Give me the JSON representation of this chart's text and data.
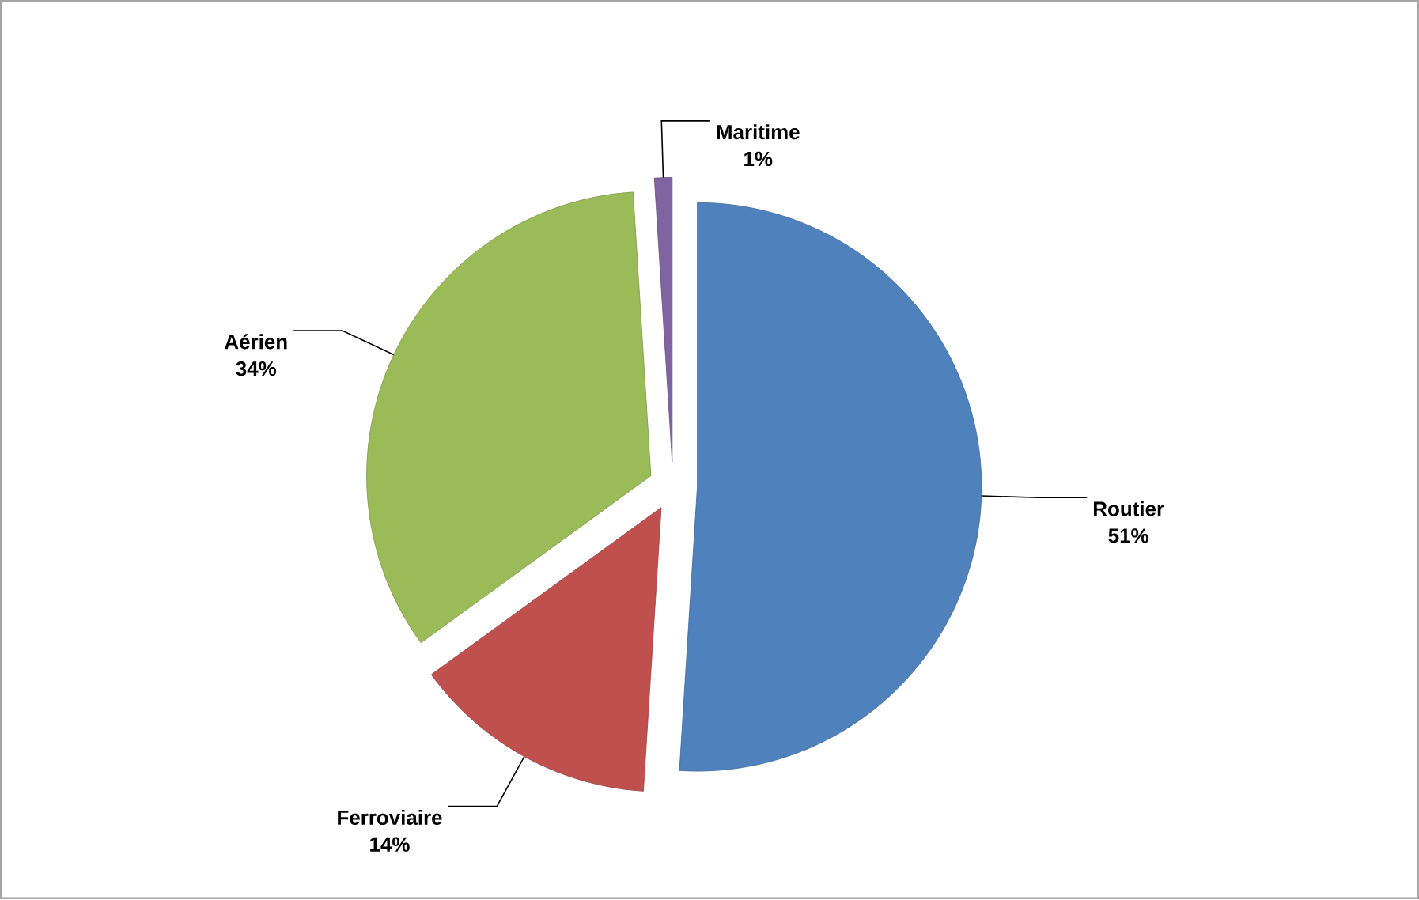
{
  "chart_data": {
    "type": "pie",
    "categories": [
      "Routier",
      "Ferroviaire",
      "Aérien",
      "Maritime"
    ],
    "values": [
      51,
      14,
      34,
      1
    ],
    "value_labels": [
      "51%",
      "14%",
      "34%",
      "1%"
    ],
    "colors": [
      "#4f81bd",
      "#c0504d",
      "#9bbb59",
      "#8064a2"
    ]
  }
}
